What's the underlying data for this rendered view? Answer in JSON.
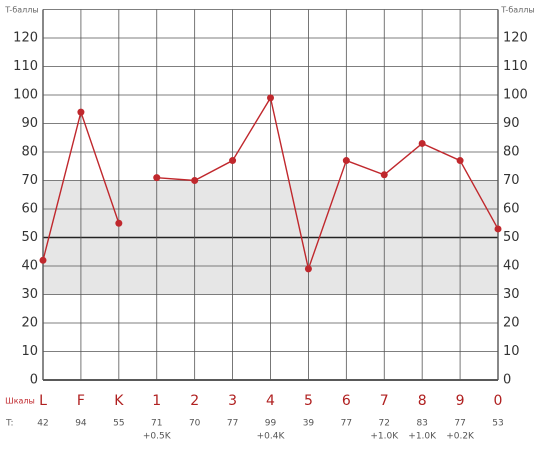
{
  "chart_data": {
    "type": "line",
    "y_label": "T-баллы",
    "x_label": "Шкалы",
    "value_row_label": "T:",
    "categories": [
      "L",
      "F",
      "K",
      "1",
      "2",
      "3",
      "4",
      "5",
      "6",
      "7",
      "8",
      "9",
      "0"
    ],
    "series": [
      {
        "color": "#c0282d",
        "values": [
          42,
          94,
          55,
          null,
          null,
          null,
          null,
          null,
          null,
          null,
          null,
          null,
          null
        ]
      },
      {
        "color": "#c0282d",
        "values": [
          null,
          null,
          null,
          71,
          70,
          77,
          99,
          39,
          77,
          72,
          83,
          77,
          53
        ]
      }
    ],
    "corrections": [
      null,
      null,
      null,
      "+0.5K",
      null,
      null,
      "+0.4K",
      null,
      null,
      "+1.0K",
      "+1.0K",
      "+0.2K",
      null
    ],
    "ylim": [
      0,
      130
    ],
    "yticks": [
      0,
      10,
      20,
      30,
      40,
      50,
      60,
      70,
      80,
      90,
      100,
      110,
      120
    ],
    "band": [
      30,
      70
    ],
    "band_color": "#e6e6e6",
    "reference_line": 50,
    "grid": true
  }
}
